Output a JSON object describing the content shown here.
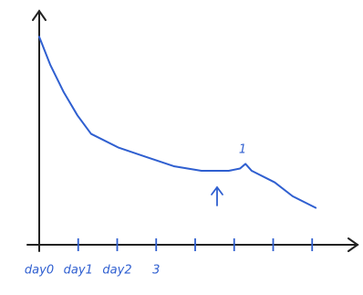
{
  "chart_data": {
    "type": "line",
    "x": [
      0,
      0.28,
      0.63,
      0.98,
      1.33,
      2.04,
      2.74,
      3.45,
      4.16,
      4.86,
      5.15,
      5.29,
      5.45,
      6.04,
      6.5,
      7.09
    ],
    "values": [
      9.0,
      7.8,
      6.6,
      5.6,
      4.8,
      4.2,
      3.8,
      3.4,
      3.2,
      3.2,
      3.3,
      3.5,
      3.2,
      2.7,
      2.1,
      1.6
    ],
    "color": "#2f5fd0",
    "xlim": [
      0,
      8
    ],
    "ylim": [
      0,
      10
    ],
    "xticks": [
      {
        "value": 0,
        "label": "day0"
      },
      {
        "value": 1,
        "label": "day1"
      },
      {
        "value": 2,
        "label": "day2"
      },
      {
        "value": 3,
        "label": "3"
      },
      {
        "value": 4,
        "label": null
      },
      {
        "value": 5,
        "label": null
      },
      {
        "value": 6,
        "label": null
      },
      {
        "value": 7,
        "label": null
      }
    ],
    "annotation": "1"
  }
}
